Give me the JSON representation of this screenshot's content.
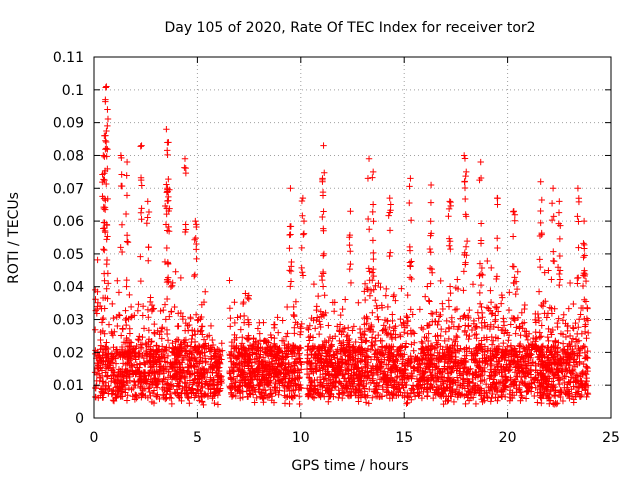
{
  "chart_data": {
    "type": "scatter",
    "title": "Day 105 of 2020, Rate Of TEC Index for receiver tor2",
    "xlabel": "GPS time / hours",
    "ylabel": "ROTI / TECUs",
    "xlim": [
      0,
      24
    ],
    "ylim": [
      0,
      0.11
    ],
    "x_ticks": [
      "0",
      "5",
      "10",
      "15",
      "20",
      "25"
    ],
    "y_ticks": [
      "0",
      "0.01",
      "0.02",
      "0.03",
      "0.04",
      "0.05",
      "0.06",
      "0.07",
      "0.08",
      "0.09",
      "0.1",
      "0.11"
    ],
    "grid": true,
    "marker": "plus",
    "color": "#ff0000",
    "profile": {
      "x": [
        0,
        0.5,
        1,
        1.5,
        2,
        2.5,
        3,
        3.5,
        4,
        4.5,
        5,
        5.5,
        6,
        6.5,
        7,
        7.5,
        8,
        8.5,
        9,
        9.5,
        10,
        10.5,
        11,
        11.5,
        12,
        12.5,
        13,
        13.5,
        14,
        14.5,
        15,
        15.5,
        16,
        16.5,
        17,
        17.5,
        18,
        18.5,
        19,
        19.5,
        20,
        20.5,
        21,
        21.5,
        22,
        22.5,
        23,
        23.5,
        24
      ],
      "typical_max": [
        0.05,
        0.055,
        0.045,
        0.04,
        0.045,
        0.035,
        0.04,
        0.05,
        0.045,
        0.04,
        0.045,
        0.04,
        0.025,
        0.045,
        0.035,
        0.04,
        0.03,
        0.035,
        0.03,
        0.045,
        0.04,
        0.04,
        0.045,
        0.035,
        0.04,
        0.03,
        0.04,
        0.045,
        0.04,
        0.04,
        0.045,
        0.035,
        0.04,
        0.045,
        0.04,
        0.045,
        0.05,
        0.045,
        0.05,
        0.045,
        0.04,
        0.045,
        0.035,
        0.045,
        0.05,
        0.04,
        0.045,
        0.05,
        0.04
      ]
    },
    "peaks": [
      {
        "x": 0.6,
        "y": 0.101
      },
      {
        "x": 0.55,
        "y": 0.097
      },
      {
        "x": 0.65,
        "y": 0.094
      },
      {
        "x": 0.5,
        "y": 0.086
      },
      {
        "x": 0.45,
        "y": 0.08
      },
      {
        "x": 1.3,
        "y": 0.08
      },
      {
        "x": 1.6,
        "y": 0.078
      },
      {
        "x": 2.3,
        "y": 0.083
      },
      {
        "x": 2.6,
        "y": 0.066
      },
      {
        "x": 3.5,
        "y": 0.088
      },
      {
        "x": 3.6,
        "y": 0.084
      },
      {
        "x": 3.55,
        "y": 0.07
      },
      {
        "x": 4.4,
        "y": 0.079
      },
      {
        "x": 4.9,
        "y": 0.06
      },
      {
        "x": 9.5,
        "y": 0.07
      },
      {
        "x": 10.1,
        "y": 0.067
      },
      {
        "x": 11.1,
        "y": 0.083
      },
      {
        "x": 11.05,
        "y": 0.073
      },
      {
        "x": 12.4,
        "y": 0.063
      },
      {
        "x": 13.3,
        "y": 0.079
      },
      {
        "x": 13.5,
        "y": 0.075
      },
      {
        "x": 14.3,
        "y": 0.067
      },
      {
        "x": 15.3,
        "y": 0.073
      },
      {
        "x": 16.3,
        "y": 0.071
      },
      {
        "x": 17.2,
        "y": 0.066
      },
      {
        "x": 17.9,
        "y": 0.08
      },
      {
        "x": 18.0,
        "y": 0.075
      },
      {
        "x": 18.7,
        "y": 0.078
      },
      {
        "x": 19.5,
        "y": 0.067
      },
      {
        "x": 20.3,
        "y": 0.063
      },
      {
        "x": 21.6,
        "y": 0.072
      },
      {
        "x": 22.2,
        "y": 0.07
      },
      {
        "x": 22.5,
        "y": 0.066
      },
      {
        "x": 23.4,
        "y": 0.07
      },
      {
        "x": 23.7,
        "y": 0.06
      }
    ]
  }
}
